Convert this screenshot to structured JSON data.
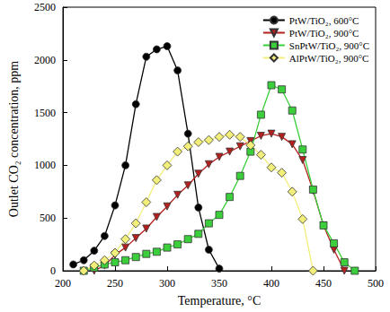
{
  "chart_data": {
    "type": "line",
    "x_label": "Temperature, °C",
    "y_label": "Outlet CO₂ concentration, ppm",
    "xlim": [
      200,
      500
    ],
    "xticks": [
      200,
      250,
      300,
      350,
      400,
      450,
      500
    ],
    "ylim": [
      0,
      2500
    ],
    "yticks": [
      0,
      500,
      1000,
      1500,
      2000,
      2500
    ],
    "grid": false,
    "legend": "upper right",
    "x": [
      210,
      220,
      230,
      240,
      250,
      260,
      270,
      280,
      290,
      300,
      310,
      320,
      330,
      340,
      350,
      360,
      370,
      380,
      390,
      400,
      410,
      420,
      430,
      440,
      450,
      460,
      470,
      480
    ],
    "series": [
      {
        "name": "PtW/TiO₂, 600°C",
        "color": "#000000",
        "marker": "circle",
        "values": [
          60,
          100,
          190,
          330,
          620,
          1000,
          1580,
          2030,
          2100,
          2130,
          1900,
          1300,
          600,
          200,
          20,
          null,
          null,
          null,
          null,
          null,
          null,
          null,
          null,
          null,
          null,
          null,
          null,
          null
        ]
      },
      {
        "name": "PtW/TiO₂, 900°C",
        "color": "#b5201f",
        "marker": "triangle_down",
        "values": [
          null,
          null,
          0,
          50,
          150,
          220,
          310,
          400,
          510,
          610,
          720,
          810,
          920,
          1010,
          1080,
          1130,
          1180,
          1230,
          1280,
          1300,
          1270,
          1200,
          1050,
          760,
          430,
          200,
          0,
          null
        ]
      },
      {
        "name": "SnPtW/TiO₂, 900°C",
        "color": "#3ccf3c",
        "marker": "square",
        "values": [
          null,
          0,
          30,
          60,
          80,
          100,
          130,
          160,
          180,
          220,
          250,
          300,
          350,
          450,
          530,
          700,
          900,
          1130,
          1480,
          1760,
          1720,
          1520,
          1150,
          770,
          430,
          260,
          80,
          0
        ]
      },
      {
        "name": "AlPtW/TiO₂, 900°C",
        "color": "#f2ee7a",
        "marker": "diamond",
        "values": [
          null,
          0,
          50,
          100,
          170,
          300,
          450,
          650,
          860,
          1000,
          1130,
          1180,
          1220,
          1240,
          1270,
          1290,
          1270,
          1190,
          1100,
          980,
          930,
          750,
          490,
          0,
          null,
          null,
          null,
          null
        ]
      }
    ]
  }
}
